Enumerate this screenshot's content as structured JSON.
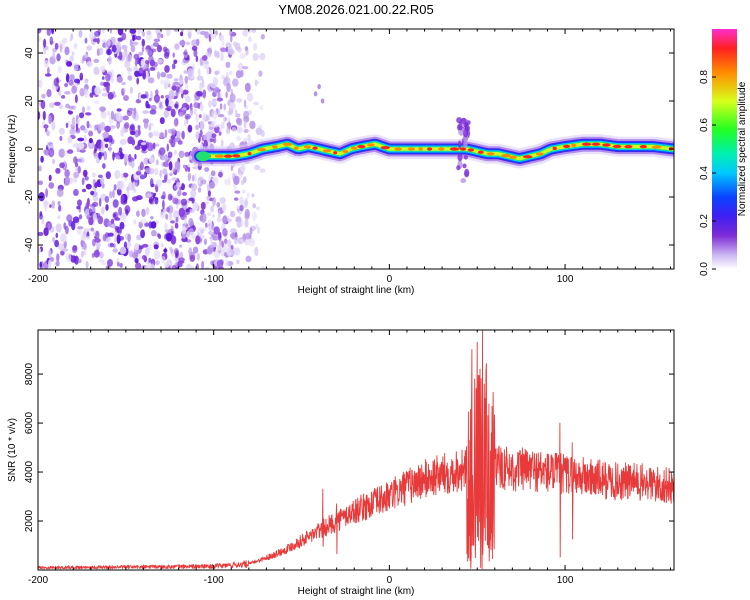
{
  "title": "YM08.2026.021.00.22.R05",
  "colors": {
    "snr_line": "#e83a3a",
    "colormap": [
      "#ffffff",
      "#c9b3f2",
      "#7d2bd6",
      "#3f1ff2",
      "#0b44ff",
      "#00c8ff",
      "#00f0b0",
      "#22ff22",
      "#d8ff1a",
      "#ff8a00",
      "#ff2020",
      "#ff2fd0"
    ]
  },
  "chart_data": [
    {
      "type": "heatmap",
      "title": "",
      "xlabel": "Height of straight line (km)",
      "ylabel": "Frequency (Hz)",
      "xlim": [
        -200,
        162
      ],
      "ylim": [
        -50,
        50
      ],
      "xticks": [
        -200,
        -100,
        0,
        100
      ],
      "xtick_labels": [
        "-200",
        "-100",
        "0",
        "100"
      ],
      "yticks": [
        -40,
        -20,
        0,
        20,
        40
      ],
      "ytick_labels": [
        "-40",
        "-20",
        "0",
        "20",
        "40"
      ],
      "colorbar": {
        "label": "Normalized spectral amplitude",
        "range": [
          0,
          1
        ],
        "ticks": [
          0.0,
          0.2,
          0.4,
          0.6,
          0.8
        ],
        "tick_labels": [
          "0.0",
          "0.2",
          "0.4",
          "0.6",
          "0.8"
        ]
      },
      "ridge": {
        "x": [
          -108,
          -98,
          -88,
          -80,
          -72,
          -64,
          -58,
          -52,
          -46,
          -40,
          -34,
          -28,
          -22,
          -16,
          -8,
          0,
          10,
          20,
          30,
          38,
          44,
          50,
          56,
          62,
          68,
          74,
          80,
          86,
          92,
          100,
          110,
          120,
          130,
          140,
          150,
          162
        ],
        "y": [
          -3,
          -3,
          -3,
          -2,
          0,
          1,
          2,
          0,
          1,
          0,
          -1,
          -2,
          0,
          1,
          2,
          0,
          0,
          0,
          0,
          0,
          0,
          -1,
          -2,
          -2,
          -3,
          -4,
          -3,
          -2,
          0,
          1,
          2,
          2,
          1,
          1,
          1,
          0
        ]
      },
      "noise_region": {
        "x_from": -200,
        "x_to": -80,
        "freq_from": -50,
        "freq_to": 50,
        "amplitude": [
          0.05,
          0.25
        ]
      },
      "feature": {
        "label": "",
        "x": 42,
        "freq_range": [
          -15,
          12
        ]
      }
    },
    {
      "type": "line",
      "title": "",
      "xlabel": "Height of straight line (km)",
      "ylabel": "SNR (10 * v/v)",
      "xlim": [
        -200,
        162
      ],
      "ylim": [
        0,
        9800
      ],
      "xticks": [
        -200,
        -100,
        0,
        100
      ],
      "xtick_labels": [
        "-200",
        "-100",
        "0",
        "100"
      ],
      "yticks": [
        2000,
        4000,
        6000,
        8000
      ],
      "ytick_labels": [
        "2000",
        "4000",
        "6000",
        "8000"
      ],
      "series": [
        {
          "name": "SNR",
          "envelope_x": [
            -200,
            -150,
            -100,
            -80,
            -70,
            -60,
            -50,
            -40,
            -30,
            -20,
            -10,
            0,
            10,
            20,
            30,
            40,
            45,
            50,
            55,
            60,
            65,
            70,
            80,
            90,
            100,
            110,
            120,
            130,
            140,
            150,
            162
          ],
          "envelope_y": [
            100,
            120,
            150,
            250,
            500,
            800,
            1200,
            1600,
            2000,
            2400,
            2700,
            3000,
            3400,
            3700,
            3900,
            4100,
            4200,
            4300,
            4300,
            4200,
            4200,
            4100,
            4100,
            4000,
            3900,
            3800,
            3700,
            3600,
            3600,
            3500,
            3400
          ],
          "spikes": [
            {
              "x": 47,
              "y": 9000
            },
            {
              "x": 48.5,
              "y": 7800
            },
            {
              "x": 50,
              "y": 9300
            },
            {
              "x": 51.5,
              "y": 8200
            },
            {
              "x": 53,
              "y": 9800
            },
            {
              "x": 54.5,
              "y": 7000
            },
            {
              "x": 56,
              "y": 6300
            },
            {
              "x": 58,
              "y": 5600
            },
            {
              "x": 97,
              "y": 6000
            },
            {
              "x": 104,
              "y": 5200
            },
            {
              "x": -38,
              "y": 3300
            },
            {
              "x": -30,
              "y": 2700
            }
          ]
        }
      ]
    }
  ]
}
